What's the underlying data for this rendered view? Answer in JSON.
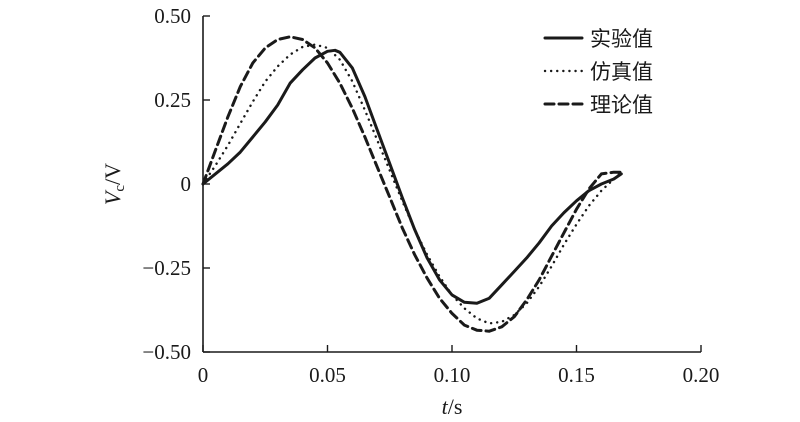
{
  "chart_data": {
    "type": "line",
    "title": "",
    "xlabel": {
      "var": "t",
      "unit": "/s"
    },
    "ylabel": {
      "var": "V",
      "sub": "c",
      "unit": "/V"
    },
    "xlim": [
      0,
      0.2
    ],
    "ylim": [
      -0.5,
      0.5
    ],
    "x_ticks": [
      0,
      0.05,
      0.1,
      0.15,
      0.2
    ],
    "x_tick_labels": [
      "0",
      "0.05",
      "0.10",
      "0.15",
      "0.20"
    ],
    "y_ticks": [
      -0.5,
      -0.25,
      0,
      0.25,
      0.5
    ],
    "y_tick_labels": [
      "−0.50",
      "−0.25",
      "0",
      "0.25",
      "0.50"
    ],
    "grid": false,
    "legend_position": "top-right",
    "series": [
      {
        "name": "实验值",
        "style": "solid",
        "x": [
          0,
          0.005,
          0.01,
          0.015,
          0.02,
          0.025,
          0.03,
          0.035,
          0.04,
          0.045,
          0.05,
          0.053,
          0.055,
          0.06,
          0.065,
          0.07,
          0.075,
          0.08,
          0.085,
          0.09,
          0.095,
          0.1,
          0.105,
          0.11,
          0.115,
          0.12,
          0.125,
          0.13,
          0.135,
          0.14,
          0.145,
          0.15,
          0.155,
          0.16,
          0.165,
          0.168
        ],
        "y": [
          0,
          0.03,
          0.06,
          0.095,
          0.14,
          0.185,
          0.235,
          0.3,
          0.34,
          0.375,
          0.395,
          0.398,
          0.392,
          0.345,
          0.26,
          0.16,
          0.06,
          -0.04,
          -0.135,
          -0.22,
          -0.285,
          -0.33,
          -0.352,
          -0.355,
          -0.34,
          -0.3,
          -0.26,
          -0.22,
          -0.175,
          -0.125,
          -0.085,
          -0.05,
          -0.02,
          0.0,
          0.015,
          0.03
        ]
      },
      {
        "name": "仿真值",
        "style": "dotted",
        "x": [
          0,
          0.005,
          0.01,
          0.015,
          0.02,
          0.025,
          0.03,
          0.035,
          0.04,
          0.045,
          0.05,
          0.055,
          0.06,
          0.065,
          0.07,
          0.075,
          0.08,
          0.085,
          0.09,
          0.095,
          0.1,
          0.105,
          0.11,
          0.115,
          0.12,
          0.125,
          0.13,
          0.135,
          0.14,
          0.145,
          0.15,
          0.155,
          0.16,
          0.165,
          0.168
        ],
        "y": [
          0,
          0.055,
          0.115,
          0.18,
          0.245,
          0.305,
          0.35,
          0.385,
          0.408,
          0.415,
          0.405,
          0.37,
          0.305,
          0.22,
          0.13,
          0.04,
          -0.05,
          -0.135,
          -0.21,
          -0.275,
          -0.33,
          -0.37,
          -0.4,
          -0.415,
          -0.41,
          -0.39,
          -0.355,
          -0.305,
          -0.245,
          -0.18,
          -0.12,
          -0.065,
          -0.02,
          0.015,
          0.035
        ]
      },
      {
        "name": "理论值",
        "style": "dashed",
        "x": [
          0,
          0.005,
          0.01,
          0.015,
          0.02,
          0.025,
          0.03,
          0.035,
          0.04,
          0.045,
          0.05,
          0.055,
          0.06,
          0.065,
          0.07,
          0.075,
          0.08,
          0.085,
          0.09,
          0.095,
          0.1,
          0.105,
          0.11,
          0.115,
          0.12,
          0.125,
          0.13,
          0.135,
          0.14,
          0.145,
          0.15,
          0.155,
          0.16,
          0.165,
          0.168
        ],
        "y": [
          0,
          0.1,
          0.2,
          0.29,
          0.36,
          0.405,
          0.43,
          0.438,
          0.43,
          0.405,
          0.36,
          0.3,
          0.225,
          0.14,
          0.05,
          -0.04,
          -0.13,
          -0.21,
          -0.28,
          -0.34,
          -0.385,
          -0.42,
          -0.435,
          -0.438,
          -0.425,
          -0.395,
          -0.345,
          -0.285,
          -0.215,
          -0.145,
          -0.075,
          -0.015,
          0.03,
          0.035,
          0.035
        ]
      }
    ]
  }
}
